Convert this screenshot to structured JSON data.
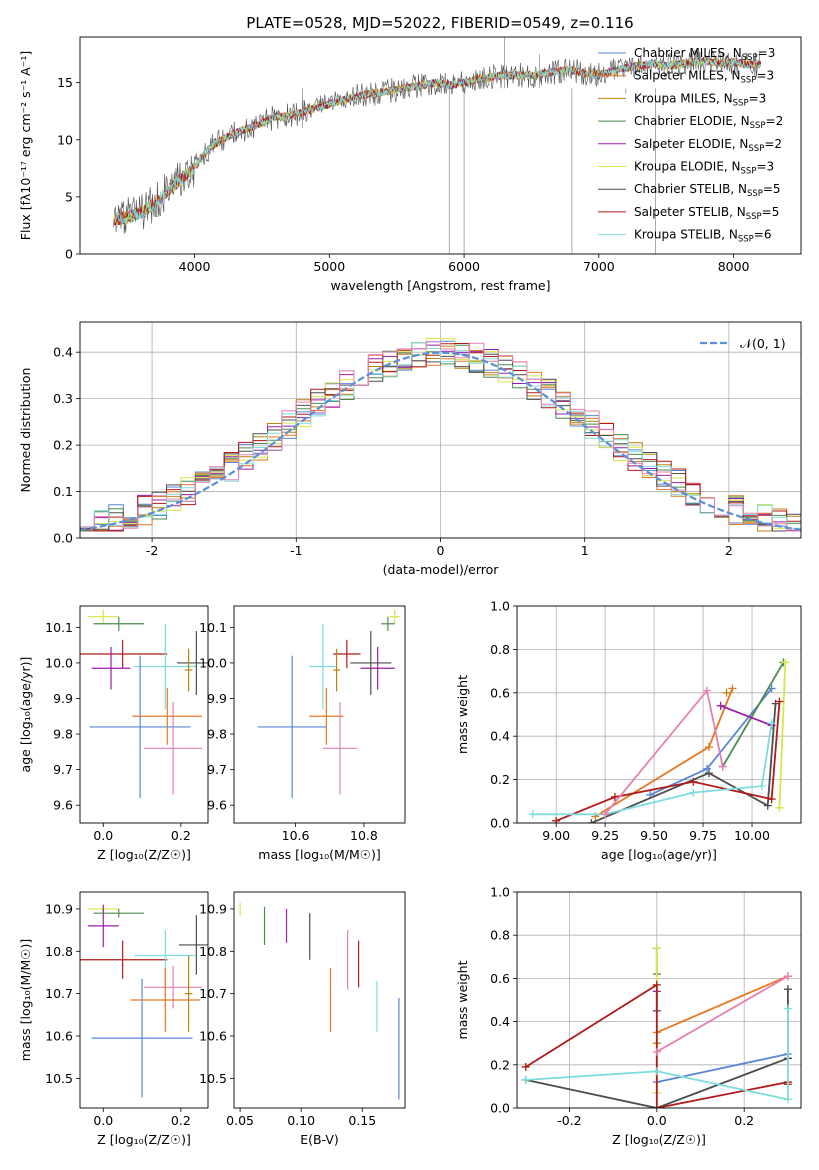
{
  "figure": {
    "title": "PLATE=0528, MJD=52022, FIBERID=0549, z=0.116"
  },
  "colors": {
    "Chabrier MILES": "#5b86d6",
    "Salpeter MILES": "#e87722",
    "Kroupa MILES": "#b8860b",
    "Chabrier ELODIE": "#4f8a4f",
    "Salpeter ELODIE": "#9b1fa8",
    "Kroupa ELODIE": "#d7e64a",
    "Chabrier STELIB": "#4d4d4d",
    "Salpeter STELIB": "#b01a1a",
    "Kroupa STELIB": "#7fdcdc",
    "pink": "#e680b3",
    "normal_curve": "#5b8fd6"
  },
  "chart_data": [
    {
      "id": "spectrum",
      "type": "line",
      "xlabel": "wavelength [Angstrom, rest frame]",
      "ylabel": "Flux [fλ10⁻¹⁷ erg cm⁻² s⁻¹ A⁻¹]",
      "xlim": [
        3150,
        8500
      ],
      "ylim": [
        0,
        19
      ],
      "xticks": [
        4000,
        5000,
        6000,
        7000,
        8000
      ],
      "yticks": [
        0,
        5,
        10,
        15
      ],
      "legend_position": "top-right",
      "x": [
        3400,
        3500,
        3600,
        3700,
        3800,
        3900,
        4000,
        4100,
        4200,
        4300,
        4400,
        4500,
        4600,
        4700,
        4800,
        4900,
        5000,
        5100,
        5200,
        5300,
        5400,
        5500,
        5600,
        5700,
        5800,
        5900,
        6000,
        6100,
        6200,
        6300,
        6400,
        6500,
        6600,
        6700,
        6800,
        6900,
        7000,
        7100,
        7200,
        7300,
        7400,
        7500,
        7600,
        7700,
        7800,
        7900,
        8000,
        8100,
        8200
      ],
      "y": [
        3.0,
        3.2,
        3.6,
        4.4,
        5.5,
        6.5,
        7.6,
        9.2,
        10.0,
        10.6,
        11.0,
        11.5,
        12.0,
        12.1,
        12.4,
        12.8,
        13.1,
        13.5,
        13.8,
        14.0,
        14.2,
        14.4,
        14.6,
        14.8,
        15.0,
        14.8,
        15.0,
        15.3,
        15.5,
        15.6,
        15.7,
        15.6,
        15.8,
        16.0,
        16.1,
        15.8,
        15.7,
        16.0,
        16.3,
        16.5,
        16.7,
        16.5,
        16.6,
        16.8,
        16.9,
        16.7,
        16.8,
        16.6,
        16.6
      ],
      "series": [
        {
          "name": "Chabrier MILES, N_SSP=3",
          "label": "Chabrier MILES, N",
          "sub": "SSP",
          "suffix": "=3"
        },
        {
          "name": "Salpeter MILES, N_SSP=3",
          "label": "Salpeter MILES, N",
          "sub": "SSP",
          "suffix": "=3"
        },
        {
          "name": "Kroupa MILES, N_SSP=3",
          "label": "Kroupa MILES, N",
          "sub": "SSP",
          "suffix": "=3"
        },
        {
          "name": "Chabrier ELODIE, N_SSP=2",
          "label": "Chabrier ELODIE, N",
          "sub": "SSP",
          "suffix": "=2"
        },
        {
          "name": "Salpeter ELODIE, N_SSP=2",
          "label": "Salpeter ELODIE, N",
          "sub": "SSP",
          "suffix": "=2"
        },
        {
          "name": "Kroupa ELODIE, N_SSP=3",
          "label": "Kroupa ELODIE, N",
          "sub": "SSP",
          "suffix": "=3"
        },
        {
          "name": "Chabrier STELIB, N_SSP=5",
          "label": "Chabrier STELIB, N",
          "sub": "SSP",
          "suffix": "=5"
        },
        {
          "name": "Salpeter STELIB, N_SSP=5",
          "label": "Salpeter STELIB, N",
          "sub": "SSP",
          "suffix": "=5"
        },
        {
          "name": "Kroupa STELIB, N_SSP=6",
          "label": "Kroupa STELIB, N",
          "sub": "SSP",
          "suffix": "=6"
        }
      ]
    },
    {
      "id": "residuals",
      "type": "histogram",
      "xlabel": "(data-model)/error",
      "ylabel": "Normed distribution",
      "xlim": [
        -2.5,
        2.5
      ],
      "ylim": [
        0,
        0.465
      ],
      "xticks": [
        -2,
        -1,
        0,
        1,
        2
      ],
      "yticks": [
        0.0,
        0.1,
        0.2,
        0.3,
        0.4
      ],
      "grid": true,
      "legend": "𝒩(0, 1)",
      "legend_position": "top-right",
      "bin_width": 0.1
    },
    {
      "id": "age_vs_Z",
      "type": "errorbar",
      "xlabel": "Z [log₁₀(Z/Z☉)]",
      "ylabel": "age [log₁₀(age/yr)]",
      "xlim": [
        -0.06,
        0.27
      ],
      "ylim": [
        9.55,
        10.16
      ],
      "xticks": [
        0.0,
        0.2
      ],
      "yticks": [
        9.6,
        9.7,
        9.8,
        9.9,
        10.0,
        10.1
      ],
      "points": [
        {
          "series": "Kroupa ELODIE",
          "x": 0.0,
          "xerr": 0.04,
          "y": 10.13,
          "yerr": 0.02
        },
        {
          "series": "Chabrier ELODIE",
          "x": 0.04,
          "xerr": 0.065,
          "y": 10.11,
          "yerr": 0.02
        },
        {
          "series": "Salpeter STELIB",
          "x": 0.05,
          "xerr": 0.115,
          "y": 10.025,
          "yerr": 0.04
        },
        {
          "series": "Salpeter ELODIE",
          "x": 0.02,
          "xerr": 0.05,
          "y": 9.985,
          "yerr": 0.06
        },
        {
          "series": "Kroupa STELIB",
          "x": 0.16,
          "xerr": 0.08,
          "y": 9.99,
          "yerr": 0.12
        },
        {
          "series": "Chabrier STELIB",
          "x": 0.24,
          "xerr": 0.05,
          "y": 10.0,
          "yerr": 0.09
        },
        {
          "series": "Kroupa MILES",
          "x": 0.22,
          "xerr": 0.01,
          "y": 9.98,
          "yerr": 0.06
        },
        {
          "series": "Salpeter MILES",
          "x": 0.165,
          "xerr": 0.09,
          "y": 9.85,
          "yerr": 0.08
        },
        {
          "series": "pink",
          "x": 0.18,
          "xerr": 0.075,
          "y": 9.76,
          "yerr": 0.13
        },
        {
          "series": "Chabrier MILES",
          "x": 0.095,
          "xerr": 0.13,
          "y": 9.82,
          "yerr": 0.2
        }
      ]
    },
    {
      "id": "age_vs_mass",
      "type": "errorbar",
      "xlabel": "mass [log₁₀(M/M☉)]",
      "ylabel": "",
      "xlim": [
        10.42,
        10.92
      ],
      "ylim": [
        9.55,
        10.16
      ],
      "xticks": [
        10.6,
        10.8
      ],
      "yticks": [
        9.6,
        9.7,
        9.8,
        9.9,
        10.0,
        10.1
      ],
      "points": [
        {
          "series": "Kroupa ELODIE",
          "x": 10.89,
          "xerr": 0.015,
          "y": 10.13,
          "yerr": 0.02
        },
        {
          "series": "Chabrier ELODIE",
          "x": 10.87,
          "xerr": 0.02,
          "y": 10.11,
          "yerr": 0.02
        },
        {
          "series": "Salpeter STELIB",
          "x": 10.75,
          "xerr": 0.04,
          "y": 10.025,
          "yerr": 0.04
        },
        {
          "series": "Salpeter ELODIE",
          "x": 10.84,
          "xerr": 0.05,
          "y": 9.985,
          "yerr": 0.06
        },
        {
          "series": "Kroupa STELIB",
          "x": 10.68,
          "xerr": 0.04,
          "y": 9.99,
          "yerr": 0.12
        },
        {
          "series": "Chabrier STELIB",
          "x": 10.82,
          "xerr": 0.06,
          "y": 10.0,
          "yerr": 0.09
        },
        {
          "series": "Kroupa MILES",
          "x": 10.72,
          "xerr": 0.01,
          "y": 9.98,
          "yerr": 0.06
        },
        {
          "series": "Salpeter MILES",
          "x": 10.69,
          "xerr": 0.05,
          "y": 9.85,
          "yerr": 0.08
        },
        {
          "series": "pink",
          "x": 10.73,
          "xerr": 0.05,
          "y": 9.76,
          "yerr": 0.13
        },
        {
          "series": "Chabrier MILES",
          "x": 10.59,
          "xerr": 0.1,
          "y": 9.82,
          "yerr": 0.2
        }
      ]
    },
    {
      "id": "weight_vs_age",
      "type": "line",
      "xlabel": "age [log₁₀(age/yr)]",
      "ylabel": "mass weight",
      "xlim": [
        8.8,
        10.25
      ],
      "ylim": [
        0,
        1
      ],
      "xticks": [
        9.0,
        9.25,
        9.5,
        9.75,
        10.0
      ],
      "yticks": [
        0.0,
        0.2,
        0.4,
        0.6,
        0.8,
        1.0
      ],
      "grid": true,
      "series": [
        {
          "name": "Chabrier MILES",
          "x": [
            9.48,
            9.77,
            10.1
          ],
          "y": [
            0.13,
            0.25,
            0.62
          ]
        },
        {
          "name": "Salpeter MILES",
          "x": [
            9.2,
            9.78,
            9.9
          ],
          "y": [
            0.03,
            0.35,
            0.62
          ]
        },
        {
          "name": "Kroupa MILES",
          "x": [
            9.87
          ],
          "y": [
            0.6
          ]
        },
        {
          "name": "Chabrier ELODIE",
          "x": [
            9.85,
            10.16
          ],
          "y": [
            0.26,
            0.74
          ]
        },
        {
          "name": "Salpeter ELODIE",
          "x": [
            9.84,
            10.1
          ],
          "y": [
            0.54,
            0.45
          ]
        },
        {
          "name": "Kroupa ELODIE",
          "x": [
            10.14,
            10.17
          ],
          "y": [
            0.07,
            0.74
          ]
        },
        {
          "name": "Chabrier STELIB",
          "x": [
            9.18,
            9.78,
            10.08,
            10.12
          ],
          "y": [
            0.0,
            0.23,
            0.08,
            0.55
          ]
        },
        {
          "name": "Salpeter STELIB",
          "x": [
            9.0,
            9.3,
            9.7,
            10.1,
            10.14
          ],
          "y": [
            0.01,
            0.12,
            0.19,
            0.11,
            0.56
          ]
        },
        {
          "name": "Kroupa STELIB",
          "x": [
            8.88,
            9.25,
            9.7,
            10.05,
            10.1
          ],
          "y": [
            0.04,
            0.04,
            0.14,
            0.17,
            0.46
          ]
        },
        {
          "name": "pink",
          "x": [
            9.25,
            9.77,
            9.85
          ],
          "y": [
            0.04,
            0.61,
            0.26
          ]
        }
      ]
    },
    {
      "id": "mass_vs_Z",
      "type": "errorbar",
      "xlabel": "Z [log₁₀(Z/Z☉)]",
      "ylabel": "mass [log₁₀(M/M☉)]",
      "xlim": [
        -0.06,
        0.27
      ],
      "ylim": [
        10.43,
        10.94
      ],
      "xticks": [
        0.0,
        0.2
      ],
      "yticks": [
        10.5,
        10.6,
        10.7,
        10.8,
        10.9
      ],
      "points": [
        {
          "series": "Kroupa ELODIE",
          "x": 0.0,
          "xerr": 0.04,
          "y": 10.9,
          "yerr": 0.01
        },
        {
          "series": "Chabrier ELODIE",
          "x": 0.04,
          "xerr": 0.065,
          "y": 10.89,
          "yerr": 0.01
        },
        {
          "series": "Salpeter ELODIE",
          "x": 0.0,
          "xerr": 0.04,
          "y": 10.86,
          "yerr": 0.05
        },
        {
          "series": "Chabrier STELIB",
          "x": 0.24,
          "xerr": 0.045,
          "y": 10.815,
          "yerr": 0.07
        },
        {
          "series": "Salpeter STELIB",
          "x": 0.05,
          "xerr": 0.115,
          "y": 10.78,
          "yerr": 0.045
        },
        {
          "series": "Kroupa STELIB",
          "x": 0.16,
          "xerr": 0.08,
          "y": 10.79,
          "yerr": 0.06
        },
        {
          "series": "pink",
          "x": 0.18,
          "xerr": 0.075,
          "y": 10.715,
          "yerr": 0.05
        },
        {
          "series": "Salpeter MILES",
          "x": 0.16,
          "xerr": 0.09,
          "y": 10.685,
          "yerr": 0.075
        },
        {
          "series": "Kroupa MILES",
          "x": 0.22,
          "xerr": 0.01,
          "y": 10.7,
          "yerr": 0.09
        },
        {
          "series": "Chabrier MILES",
          "x": 0.1,
          "xerr": 0.13,
          "y": 10.595,
          "yerr": 0.14
        }
      ]
    },
    {
      "id": "mass_vs_EBV",
      "type": "errorbar",
      "xlabel": "E(B-V)",
      "ylabel": "",
      "xlim": [
        0.045,
        0.185
      ],
      "ylim": [
        10.43,
        10.94
      ],
      "xticks": [
        0.05,
        0.1,
        0.15
      ],
      "yticks": [
        10.5,
        10.6,
        10.7,
        10.8,
        10.9
      ],
      "points": [
        {
          "series": "Kroupa ELODIE",
          "x": 0.05,
          "xerr": 0.0,
          "y": 10.9,
          "yerr": 0.015
        },
        {
          "series": "Chabrier ELODIE",
          "x": 0.07,
          "xerr": 0.0,
          "y": 10.86,
          "yerr": 0.045
        },
        {
          "series": "Salpeter ELODIE",
          "x": 0.088,
          "xerr": 0.0,
          "y": 10.86,
          "yerr": 0.04
        },
        {
          "series": "Chabrier STELIB",
          "x": 0.107,
          "xerr": 0.0,
          "y": 10.835,
          "yerr": 0.055
        },
        {
          "series": "Salpeter MILES",
          "x": 0.124,
          "xerr": 0.0,
          "y": 10.685,
          "yerr": 0.075
        },
        {
          "series": "pink",
          "x": 0.138,
          "xerr": 0.0,
          "y": 10.78,
          "yerr": 0.07
        },
        {
          "series": "Salpeter STELIB",
          "x": 0.147,
          "xerr": 0.0,
          "y": 10.77,
          "yerr": 0.055
        },
        {
          "series": "Kroupa STELIB",
          "x": 0.162,
          "xerr": 0.0,
          "y": 10.67,
          "yerr": 0.06
        },
        {
          "series": "Chabrier MILES",
          "x": 0.18,
          "xerr": 0.0,
          "y": 10.57,
          "yerr": 0.12
        }
      ]
    },
    {
      "id": "weight_vs_Z",
      "type": "line",
      "xlabel": "Z [log₁₀(Z/Z☉)]",
      "ylabel": "mass weight",
      "xlim": [
        -0.32,
        0.33
      ],
      "ylim": [
        0,
        1
      ],
      "xticks": [
        -0.2,
        0.0,
        0.2
      ],
      "yticks": [
        0.0,
        0.2,
        0.4,
        0.6,
        0.8,
        1.0
      ],
      "grid": true,
      "series": [
        {
          "name": "Chabrier MILES",
          "x": [
            0.0,
            0.3
          ],
          "y": [
            0.12,
            0.25
          ]
        },
        {
          "name": "Salpeter MILES",
          "x": [
            0.0,
            0.3
          ],
          "y": [
            0.35,
            0.61
          ]
        },
        {
          "name": "Kroupa MILES",
          "x": [
            0.0
          ],
          "y": [
            0.3
          ]
        },
        {
          "name": "Chabrier ELODIE",
          "x": [
            0.0,
            0.0
          ],
          "y": [
            0.62,
            0.74
          ]
        },
        {
          "name": "Salpeter ELODIE",
          "x": [
            0.0,
            0.0
          ],
          "y": [
            0.45,
            0.54
          ]
        },
        {
          "name": "Kroupa ELODIE",
          "x": [
            0.0,
            0.0
          ],
          "y": [
            0.07,
            0.74
          ]
        },
        {
          "name": "Chabrier STELIB",
          "x": [
            -0.3,
            0.0,
            0.3,
            0.3
          ],
          "y": [
            0.13,
            0.0,
            0.23,
            0.55
          ]
        },
        {
          "name": "Salpeter STELIB",
          "x": [
            -0.3,
            0.0,
            0.0,
            0.3,
            0.3
          ],
          "y": [
            0.19,
            0.57,
            0.0,
            0.12,
            0.11
          ]
        },
        {
          "name": "Kroupa STELIB",
          "x": [
            -0.3,
            0.0,
            0.3,
            0.3
          ],
          "y": [
            0.13,
            0.17,
            0.04,
            0.46
          ]
        },
        {
          "name": "pink",
          "x": [
            0.0,
            0.3
          ],
          "y": [
            0.26,
            0.61
          ]
        }
      ]
    }
  ]
}
